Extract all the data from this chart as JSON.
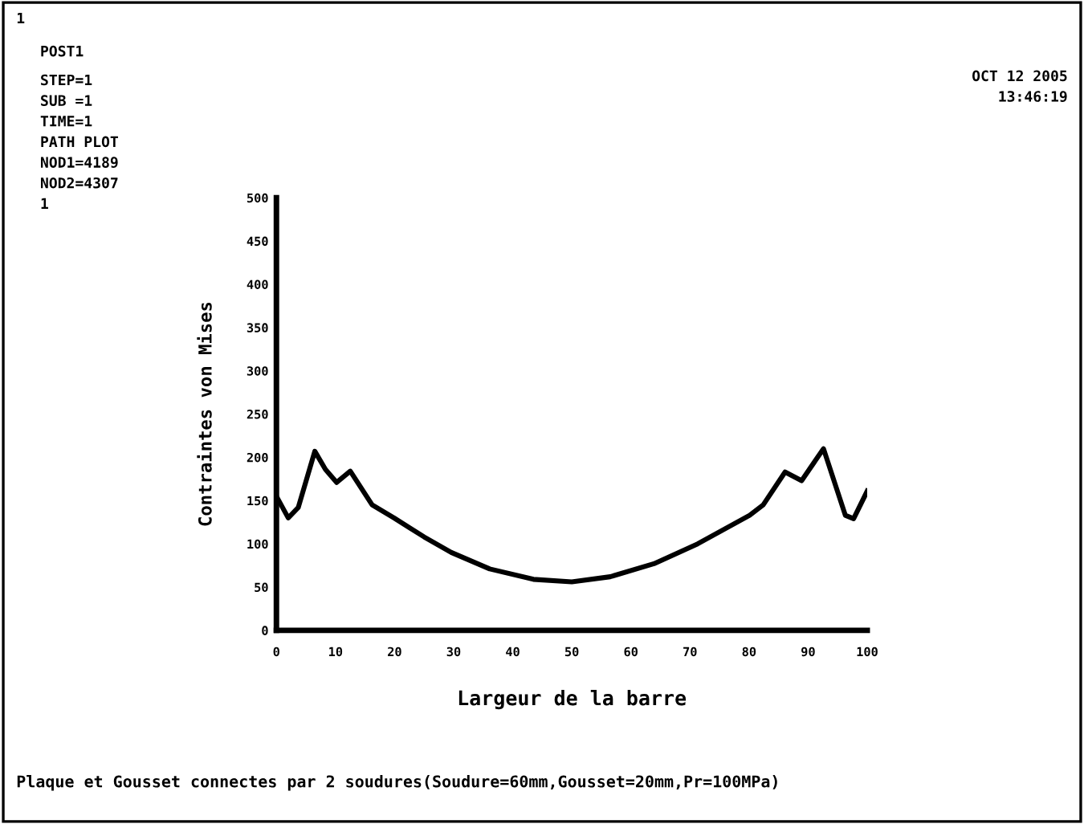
{
  "chart_data": {
    "type": "line",
    "title": "Plaque et Gousset connectes par 2 soudures(Soudure=60mm,Gousset=20mm,Pr=100MPa)",
    "xlabel": "Largeur de la barre",
    "ylabel": "Contraintes von Mises",
    "annotations": [
      "1",
      "POST1",
      "STEP=1",
      "SUB =1",
      "TIME=1",
      "PATH PLOT",
      "NOD1=4189",
      "NOD2=4307",
      "1",
      "OCT 12 2005",
      "13:46:19"
    ],
    "series": [
      {
        "color": "#000000",
        "x": [
          0,
          2,
          3.7,
          6.5,
          8.3,
          10.2,
          12.5,
          16.2,
          19.9,
          25,
          29.6,
          36.1,
          43.5,
          50,
          56.5,
          63.9,
          71.3,
          80.1,
          82.4,
          86.1,
          88.9,
          92.6,
          96.3,
          97.7,
          100
        ],
        "values": [
          155,
          130,
          142,
          207,
          186,
          171,
          184,
          145,
          130,
          108,
          90,
          71,
          59,
          56,
          62,
          77,
          100,
          133,
          145,
          183,
          173,
          210,
          133,
          129,
          161
        ]
      }
    ],
    "xlim": [
      0,
      100
    ],
    "ylim": [
      0,
      500
    ],
    "xticks": [
      0,
      10,
      20,
      30,
      40,
      50,
      60,
      70,
      80,
      90,
      100
    ],
    "yticks": [
      0,
      50,
      100,
      150,
      200,
      250,
      300,
      350,
      400,
      450,
      500
    ],
    "grid": false,
    "legend": false,
    "line_style": "solid",
    "marker": "none"
  }
}
